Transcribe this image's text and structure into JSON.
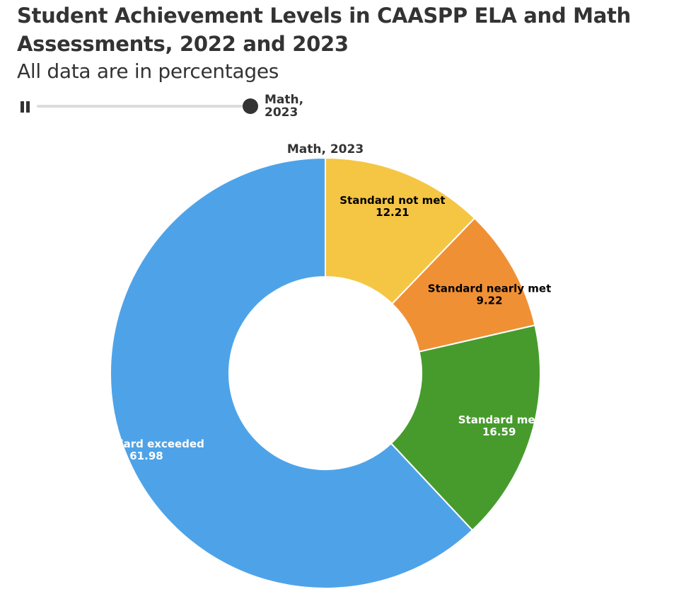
{
  "header": {
    "title": "Student Achievement Levels in CAASPP ELA and Math Assessments, 2022 and 2023",
    "subtitle": "All data are in percentages"
  },
  "controls": {
    "play_state_icon": "pause-icon",
    "slider_label": "Math,\n2023",
    "slider_position": 1.0
  },
  "chart_data": {
    "type": "pie",
    "donut": true,
    "title": "Math, 2023",
    "categories": [
      "Standard not met",
      "Standard nearly met",
      "Standard met",
      "Standard exceeded"
    ],
    "values": [
      12.21,
      9.22,
      16.59,
      61.98
    ],
    "colors": [
      "#f5c644",
      "#f09035",
      "#479b2d",
      "#4ea3e8"
    ],
    "label_colors": [
      "#000000",
      "#000000",
      "#ffffff",
      "#ffffff"
    ]
  }
}
